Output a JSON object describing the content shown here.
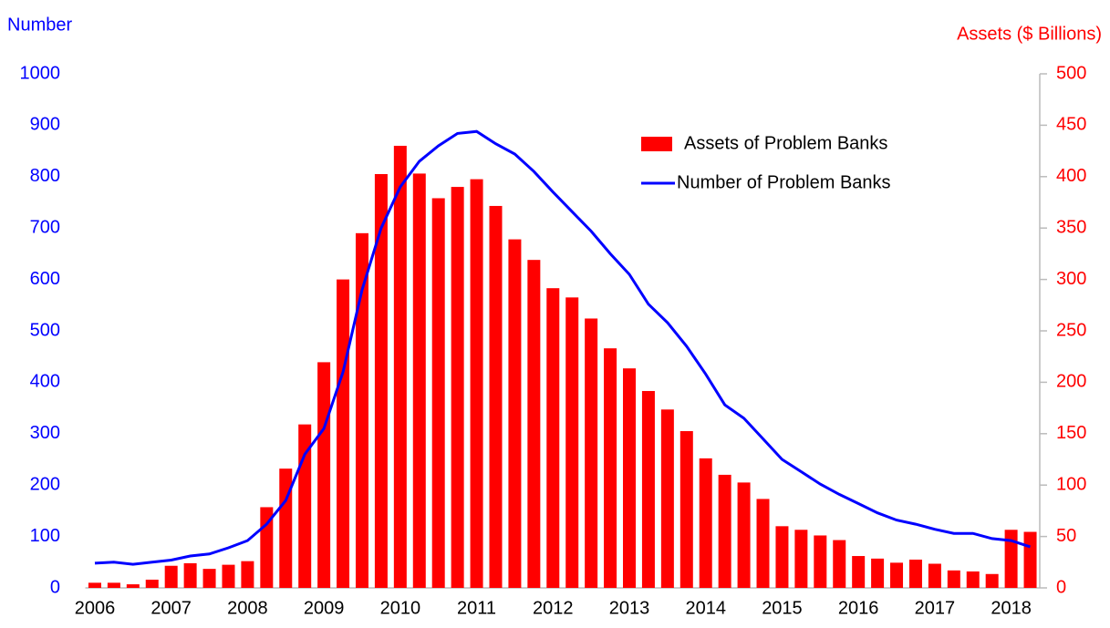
{
  "chart_data": {
    "type": "bar_line",
    "y_label": "Number",
    "y2_label": "Assets ($ Billions)",
    "categories": [
      "2006",
      null,
      null,
      null,
      "2007",
      null,
      null,
      null,
      "2008",
      null,
      null,
      null,
      "2009",
      null,
      null,
      null,
      "2010",
      null,
      null,
      null,
      "2011",
      null,
      null,
      null,
      "2012",
      null,
      null,
      null,
      "2013",
      null,
      null,
      null,
      "2014",
      null,
      null,
      null,
      "2015",
      null,
      null,
      null,
      "2016",
      null,
      null,
      null,
      "2017",
      null,
      null,
      null,
      "2018",
      null
    ],
    "series": [
      {
        "name": "Assets of Problem Banks",
        "type": "bar",
        "axis": "y2",
        "color": "#ff0000",
        "values": [
          5,
          5,
          3.5,
          8,
          21.5,
          24,
          18.5,
          22.5,
          26,
          78.5,
          116,
          159,
          219.5,
          300,
          345,
          402.5,
          430,
          403,
          379,
          390,
          397.5,
          371.5,
          339,
          319,
          291.5,
          282.5,
          262,
          233,
          213.5,
          191.5,
          173.5,
          152.5,
          126,
          110,
          102.5,
          86.5,
          60,
          56.5,
          51,
          46.5,
          31,
          28.5,
          24.5,
          27.5,
          23.5,
          17,
          16,
          13.5,
          56.5,
          54.5
        ]
      },
      {
        "name": "Number of Problem Banks",
        "type": "line",
        "axis": "y",
        "color": "#0000ff",
        "values": [
          48,
          50,
          46,
          50,
          54,
          62,
          66,
          78,
          92,
          124,
          170,
          260,
          310,
          420,
          580,
          700,
          780,
          830,
          860,
          884,
          888,
          864,
          844,
          810,
          770,
          732,
          694,
          650,
          610,
          552,
          516,
          470,
          416,
          356,
          330,
          290,
          250,
          226,
          202,
          182,
          164,
          146,
          132,
          124,
          114,
          106,
          106,
          96,
          92,
          80
        ]
      }
    ],
    "ylim": [
      0,
      1000
    ],
    "yticks": [
      0,
      100,
      200,
      300,
      400,
      500,
      600,
      700,
      800,
      900,
      1000
    ],
    "y2lim": [
      0,
      500
    ],
    "y2ticks": [
      0,
      50,
      100,
      150,
      200,
      250,
      300,
      350,
      400,
      450,
      500
    ],
    "y_color": "#0000ff",
    "y2_color": "#ff0000"
  }
}
